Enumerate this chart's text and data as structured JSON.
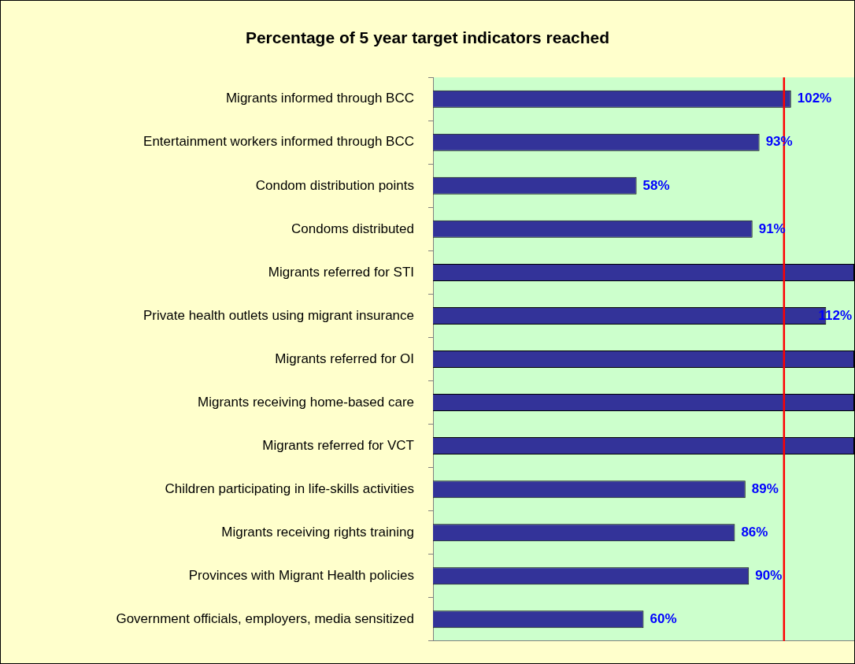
{
  "chart_data": {
    "type": "bar",
    "orientation": "horizontal",
    "title": "Percentage of 5 year target indicators reached",
    "categories": [
      "Migrants informed through BCC",
      "Entertainment workers informed through BCC",
      "Condom distribution points",
      "Condoms distributed",
      "Migrants referred for STI",
      "Private health outlets using migrant insurance",
      "Migrants referred for OI",
      "Migrants receiving home-based care",
      "Migrants referred for VCT",
      "Children participating in life-skills activities",
      "Migrants receiving rights training",
      "Provinces with Migrant Health policies",
      "Government officials, employers, media sensitized"
    ],
    "values": [
      102,
      93,
      58,
      91,
      120,
      112,
      120,
      120,
      120,
      89,
      86,
      90,
      60
    ],
    "value_labels": [
      "102%",
      "93%",
      "58%",
      "91%",
      null,
      "112%",
      null,
      null,
      null,
      "89%",
      "86%",
      "90%",
      "60%"
    ],
    "color": "#333399",
    "xlim": [
      0,
      120
    ],
    "ref_lines": [
      {
        "axis": "x",
        "value": 100,
        "color": "#ff0000"
      }
    ]
  }
}
